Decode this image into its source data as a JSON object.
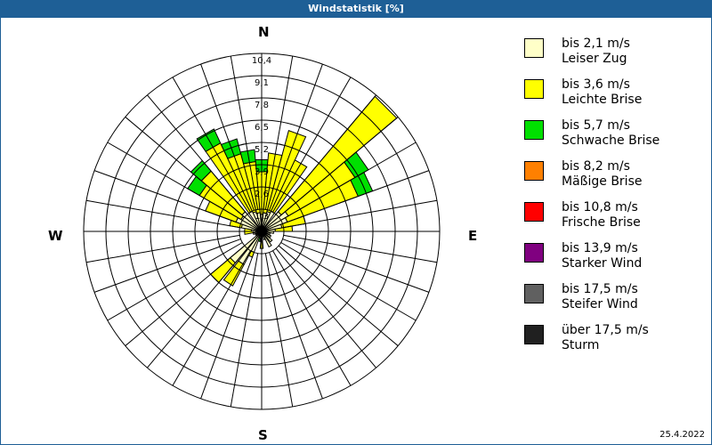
{
  "title": "Windstatistik [%]",
  "date": "25.4.2022",
  "compass": {
    "n": "N",
    "e": "E",
    "s": "S",
    "w": "W"
  },
  "legend": [
    {
      "line1": "bis 2,1 m/s",
      "line2": "Leiser Zug",
      "color": "#ffffc8"
    },
    {
      "line1": "bis 3,6 m/s",
      "line2": "Leichte Brise",
      "color": "#ffff00"
    },
    {
      "line1": "bis 5,7 m/s",
      "line2": "Schwache Brise",
      "color": "#00e000"
    },
    {
      "line1": "bis 8,2 m/s",
      "line2": "Mäßige Brise",
      "color": "#ff8000"
    },
    {
      "line1": "bis 10,8 m/s",
      "line2": "Frische Brise",
      "color": "#ff0000"
    },
    {
      "line1": "bis 13,9 m/s",
      "line2": "Starker Wind",
      "color": "#800080"
    },
    {
      "line1": "bis 17,5 m/s",
      "line2": "Steifer Wind",
      "color": "#606060"
    },
    {
      "line1": "über 17,5 m/s",
      "line2": "Sturm",
      "color": "#202020"
    }
  ],
  "chart_data": {
    "type": "polar-bar (wind rose)",
    "title": "Windstatistik [%]",
    "unit": "%",
    "ring_labels": [
      "1,3",
      "2,6",
      "3,9",
      "5,2",
      "6,5",
      "7,8",
      "9,1",
      "10,4"
    ],
    "rmax": 10.4,
    "ring_step": 1.3,
    "sector_width_deg": 10,
    "bands": [
      "bis 2,1 m/s Leiser Zug",
      "bis 3,6 m/s Leichte Brise",
      "bis 5,7 m/s Schwache Brise",
      "bis 8,2 m/s Mäßige Brise",
      "bis 10,8 m/s Frische Brise",
      "bis 13,9 m/s Starker Wind",
      "bis 17,5 m/s Steifer Wind",
      "über 17,5 m/s Sturm"
    ],
    "note": "values are cumulative % per direction for bands Leiser Zug / Leichte Brise / Schwache Brise (higher bands ~0)",
    "sectors": [
      {
        "dir": 0,
        "cum": [
          1.0,
          3.5,
          4.2
        ]
      },
      {
        "dir": 10,
        "cum": [
          1.1,
          4.6,
          4.6
        ]
      },
      {
        "dir": 20,
        "cum": [
          1.2,
          6.1,
          6.1
        ]
      },
      {
        "dir": 30,
        "cum": [
          1.3,
          4.6,
          4.6
        ]
      },
      {
        "dir": 45,
        "cum": [
          1.5,
          10.3,
          10.3
        ]
      },
      {
        "dir": 55,
        "cum": [
          1.8,
          6.3,
          7.2
        ]
      },
      {
        "dir": 65,
        "cum": [
          1.6,
          6.0,
          6.9
        ]
      },
      {
        "dir": 75,
        "cum": [
          1.2,
          2.6,
          2.6
        ]
      },
      {
        "dir": 85,
        "cum": [
          0.8,
          1.8,
          1.8
        ]
      },
      {
        "dir": 95,
        "cum": [
          0.7,
          0.7,
          0.7
        ]
      },
      {
        "dir": 105,
        "cum": [
          0.5,
          0.5,
          0.5
        ]
      },
      {
        "dir": 120,
        "cum": [
          0.6,
          0.6,
          0.6
        ]
      },
      {
        "dir": 135,
        "cum": [
          0.8,
          0.8,
          0.8
        ]
      },
      {
        "dir": 150,
        "cum": [
          1.0,
          1.0,
          1.0
        ]
      },
      {
        "dir": 160,
        "cum": [
          0.5,
          0.5,
          0.5
        ]
      },
      {
        "dir": 180,
        "cum": [
          0.5,
          1.0,
          1.0
        ]
      },
      {
        "dir": 195,
        "cum": [
          0.4,
          0.4,
          0.6
        ]
      },
      {
        "dir": 205,
        "cum": [
          1.3,
          1.6,
          1.6
        ]
      },
      {
        "dir": 213,
        "cum": [
          2.2,
          3.6,
          3.6
        ]
      },
      {
        "dir": 225,
        "cum": [
          2.4,
          3.9,
          3.9
        ]
      },
      {
        "dir": 240,
        "cum": [
          0.4,
          0.4,
          0.4
        ]
      },
      {
        "dir": 255,
        "cum": [
          0.5,
          0.5,
          0.5
        ]
      },
      {
        "dir": 265,
        "cum": [
          0.5,
          1.0,
          1.0
        ]
      },
      {
        "dir": 275,
        "cum": [
          0.6,
          1.0,
          1.0
        ]
      },
      {
        "dir": 285,
        "cum": [
          1.2,
          1.9,
          1.9
        ]
      },
      {
        "dir": 295,
        "cum": [
          1.6,
          3.5,
          3.5
        ]
      },
      {
        "dir": 305,
        "cum": [
          1.4,
          4.2,
          5.0
        ]
      },
      {
        "dir": 315,
        "cum": [
          1.5,
          4.6,
          5.4
        ]
      },
      {
        "dir": 330,
        "cum": [
          1.3,
          5.7,
          6.6
        ]
      },
      {
        "dir": 340,
        "cum": [
          1.2,
          4.7,
          5.6
        ]
      },
      {
        "dir": 350,
        "cum": [
          1.1,
          4.1,
          4.8
        ]
      }
    ]
  }
}
